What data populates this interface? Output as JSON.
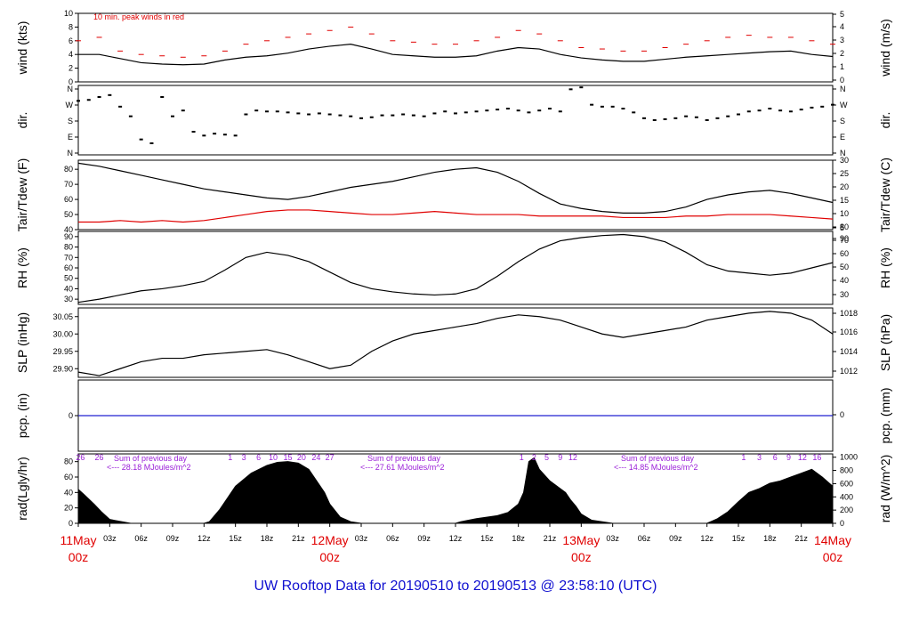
{
  "chart_data": {
    "type": "line",
    "title": "UW Rooftop Data for 20190510  to  20190513 @ 23:58:10  (UTC)",
    "x_time_labels": [
      "03z",
      "06z",
      "09z",
      "12z",
      "15z",
      "18z",
      "21z",
      "03z",
      "06z",
      "09z",
      "12z",
      "15z",
      "18z",
      "21z",
      "03z",
      "06z",
      "09z",
      "12z",
      "15z",
      "18z",
      "21z"
    ],
    "x_day_labels": [
      {
        "day": "11May",
        "hour": "00z"
      },
      {
        "day": "12May",
        "hour": "00z"
      },
      {
        "day": "13May",
        "hour": "00z"
      },
      {
        "day": "14May",
        "hour": "00z"
      }
    ],
    "panels": [
      {
        "id": "wind",
        "ylabel_left": "wind (kts)",
        "ylabel_right": "wind (m/s)",
        "left_ticks": [
          0,
          2,
          4,
          6,
          8,
          10
        ],
        "right_ticks": [
          0,
          1,
          2,
          3,
          4,
          5
        ],
        "ylim": [
          0,
          10
        ],
        "annotation": "10 min. peak winds in red",
        "series": [
          {
            "kind": "mean",
            "color": "#000000",
            "x": [
              0,
              2,
              4,
              6,
              8,
              10,
              12,
              14,
              16,
              18,
              20,
              22,
              24,
              26,
              28,
              30,
              32,
              34,
              36,
              38,
              40,
              42,
              44,
              46,
              48,
              50,
              52,
              54,
              56,
              58,
              60,
              62,
              64,
              66,
              68,
              70,
              72
            ],
            "values": [
              4,
              4,
              3.4,
              2.8,
              2.6,
              2.5,
              2.6,
              3.2,
              3.6,
              3.8,
              4.2,
              4.8,
              5.2,
              5.5,
              4.8,
              4,
              3.8,
              3.6,
              3.6,
              3.8,
              4.5,
              5,
              4.8,
              4,
              3.5,
              3.2,
              3,
              3,
              3.3,
              3.6,
              3.8,
              4,
              4.2,
              4.4,
              4.5,
              4,
              3.7
            ]
          },
          {
            "kind": "peak",
            "color": "#e00000",
            "x": [
              0,
              2,
              4,
              6,
              8,
              10,
              12,
              14,
              16,
              18,
              20,
              22,
              24,
              26,
              28,
              30,
              32,
              34,
              36,
              38,
              40,
              42,
              44,
              46,
              48,
              50,
              52,
              54,
              56,
              58,
              60,
              62,
              64,
              66,
              68,
              70,
              72
            ],
            "values": [
              6,
              6.5,
              4.5,
              4,
              3.8,
              3.6,
              3.8,
              4.5,
              5.5,
              6,
              6.5,
              7,
              7.5,
              8,
              7,
              6,
              5.8,
              5.5,
              5.5,
              6,
              6.5,
              7.5,
              7,
              6,
              5,
              4.8,
              4.5,
              4.5,
              5,
              5.5,
              6,
              6.5,
              6.8,
              6.5,
              6.5,
              6,
              5.5
            ]
          }
        ]
      },
      {
        "id": "dir",
        "ylabel_left": "dir.",
        "ylabel_right": "dir.",
        "left_ticks": [
          "N",
          "E",
          "S",
          "W",
          "N"
        ],
        "right_ticks": [
          "N",
          "E",
          "S",
          "W",
          "N"
        ],
        "ylim": [
          0,
          360
        ],
        "series": [
          {
            "kind": "scatter",
            "color": "#000000",
            "x": [
              0,
              1,
              2,
              3,
              4,
              5,
              6,
              7,
              8,
              9,
              10,
              11,
              12,
              13,
              14,
              15,
              16,
              17,
              18,
              19,
              20,
              21,
              22,
              23,
              24,
              25,
              26,
              27,
              28,
              29,
              30,
              31,
              32,
              33,
              34,
              35,
              36,
              37,
              38,
              39,
              40,
              41,
              42,
              43,
              44,
              45,
              46,
              47,
              48,
              49,
              50,
              51,
              52,
              53,
              54,
              55,
              56,
              57,
              58,
              59,
              60,
              61,
              62,
              63,
              64,
              65,
              66,
              67,
              68,
              69,
              70,
              71,
              72
            ],
            "values": [
              280,
              285,
              300,
              310,
              250,
              200,
              80,
              60,
              300,
              200,
              230,
              120,
              100,
              110,
              105,
              100,
              210,
              230,
              225,
              225,
              220,
              215,
              210,
              215,
              210,
              205,
              200,
              190,
              195,
              205,
              205,
              210,
              205,
              200,
              215,
              225,
              215,
              220,
              225,
              230,
              235,
              240,
              230,
              220,
              230,
              240,
              225,
              340,
              350,
              260,
              250,
              250,
              240,
              220,
              190,
              180,
              185,
              190,
              200,
              195,
              180,
              190,
              200,
              210,
              225,
              230,
              240,
              230,
              225,
              235,
              245,
              250,
              260
            ]
          }
        ]
      },
      {
        "id": "temp",
        "ylabel_left": "Tair/Tdew (F)",
        "ylabel_right": "Tair/Tdew (C)",
        "left_ticks": [
          40,
          50,
          60,
          70,
          80
        ],
        "right_ticks": [
          5,
          10,
          15,
          20,
          25,
          30
        ],
        "ylim": [
          40,
          86
        ],
        "series": [
          {
            "name": "Tair",
            "color": "#000000",
            "x": [
              0,
              2,
              4,
              6,
              8,
              10,
              12,
              14,
              16,
              18,
              20,
              22,
              24,
              26,
              28,
              30,
              32,
              34,
              36,
              38,
              40,
              42,
              44,
              46,
              48,
              50,
              52,
              54,
              56,
              58,
              60,
              62,
              64,
              66,
              68,
              70,
              72
            ],
            "values": [
              84,
              82,
              79,
              76,
              73,
              70,
              67,
              65,
              63,
              61,
              60,
              62,
              65,
              68,
              70,
              72,
              75,
              78,
              80,
              81,
              78,
              72,
              64,
              57,
              54,
              52,
              51,
              51,
              52,
              55,
              60,
              63,
              65,
              66,
              64,
              61,
              58
            ]
          },
          {
            "name": "Tdew",
            "color": "#e00000",
            "x": [
              0,
              2,
              4,
              6,
              8,
              10,
              12,
              14,
              16,
              18,
              20,
              22,
              24,
              26,
              28,
              30,
              32,
              34,
              36,
              38,
              40,
              42,
              44,
              46,
              48,
              50,
              52,
              54,
              56,
              58,
              60,
              62,
              64,
              66,
              68,
              70,
              72
            ],
            "values": [
              45,
              45,
              46,
              45,
              46,
              45,
              46,
              48,
              50,
              52,
              53,
              53,
              52,
              51,
              50,
              50,
              51,
              52,
              51,
              50,
              50,
              50,
              49,
              49,
              49,
              49,
              48,
              48,
              48,
              49,
              49,
              50,
              50,
              50,
              49,
              48,
              47
            ]
          }
        ]
      },
      {
        "id": "rh",
        "ylabel_left": "RH (%)",
        "ylabel_right": "RH (%)",
        "left_ticks": [
          30,
          40,
          50,
          60,
          70,
          80,
          90
        ],
        "right_ticks": [
          30,
          40,
          50,
          60,
          70,
          80,
          90
        ],
        "ylim": [
          25,
          95
        ],
        "series": [
          {
            "name": "RH",
            "color": "#000000",
            "x": [
              0,
              2,
              4,
              6,
              8,
              10,
              12,
              14,
              16,
              18,
              20,
              22,
              24,
              26,
              28,
              30,
              32,
              34,
              36,
              38,
              40,
              42,
              44,
              46,
              48,
              50,
              52,
              54,
              56,
              58,
              60,
              62,
              64,
              66,
              68,
              70,
              72
            ],
            "values": [
              27,
              30,
              34,
              38,
              40,
              43,
              47,
              58,
              70,
              75,
              72,
              66,
              56,
              46,
              40,
              37,
              35,
              34,
              35,
              40,
              52,
              66,
              78,
              86,
              89,
              91,
              92,
              90,
              85,
              75,
              63,
              57,
              55,
              53,
              55,
              60,
              65
            ]
          }
        ]
      },
      {
        "id": "slp",
        "ylabel_left": "SLP (inHg)",
        "ylabel_right": "SLP (hPa)",
        "left_ticks": [
          "29.90",
          "29.95",
          "30.00",
          "30.05"
        ],
        "right_ticks": [
          1012,
          1014,
          1016,
          1018
        ],
        "ylim": [
          29.875,
          30.075
        ],
        "series": [
          {
            "name": "SLP",
            "color": "#000000",
            "x": [
              0,
              2,
              4,
              6,
              8,
              10,
              12,
              14,
              16,
              18,
              20,
              22,
              24,
              26,
              28,
              30,
              32,
              34,
              36,
              38,
              40,
              42,
              44,
              46,
              48,
              50,
              52,
              54,
              56,
              58,
              60,
              62,
              64,
              66,
              68,
              70,
              72
            ],
            "values": [
              29.89,
              29.88,
              29.9,
              29.92,
              29.93,
              29.93,
              29.94,
              29.945,
              29.95,
              29.955,
              29.94,
              29.92,
              29.9,
              29.91,
              29.95,
              29.98,
              30,
              30.01,
              30.02,
              30.03,
              30.045,
              30.055,
              30.05,
              30.04,
              30.02,
              30,
              29.99,
              30,
              30.01,
              30.02,
              30.04,
              30.05,
              30.06,
              30.065,
              30.06,
              30.04,
              30
            ]
          }
        ]
      },
      {
        "id": "pcp",
        "ylabel_left": "pcp. (in)",
        "ylabel_right": "pcp. (mm)",
        "left_ticks": [
          0
        ],
        "right_ticks": [
          0
        ],
        "ylim": [
          -0.1,
          0.1
        ],
        "series": [
          {
            "name": "pcp",
            "color": "#2020d0",
            "x": [
              0,
              72
            ],
            "values": [
              0,
              0
            ]
          }
        ]
      },
      {
        "id": "rad",
        "ylabel_left": "rad(Lgly/hr)",
        "ylabel_right": "rad (W/m^2)",
        "left_ticks": [
          0,
          20,
          40,
          60,
          80
        ],
        "right_ticks": [
          0,
          200,
          400,
          600,
          800,
          1000
        ],
        "ylim": [
          0,
          90
        ],
        "daily_sums": [
          {
            "label": "Sum of previous day",
            "value": "<--- 28.18 MJoules/m^2"
          },
          {
            "label": "Sum of previous day",
            "value": "<--- 27.61 MJoules/m^2"
          },
          {
            "label": "Sum of previous day",
            "value": "<--- 14.85 MJoules/m^2"
          }
        ],
        "top_labels": [
          {
            "x": 0.2,
            "text": "26"
          },
          {
            "x": 2,
            "text": "26"
          },
          {
            "x": 14.5,
            "text": "1"
          },
          {
            "x": 15.8,
            "text": "3"
          },
          {
            "x": 17.2,
            "text": "6"
          },
          {
            "x": 18.6,
            "text": "10"
          },
          {
            "x": 20,
            "text": "15"
          },
          {
            "x": 21.3,
            "text": "20"
          },
          {
            "x": 22.7,
            "text": "24"
          },
          {
            "x": 24,
            "text": "27"
          },
          {
            "x": 42.3,
            "text": "1"
          },
          {
            "x": 43.5,
            "text": "2"
          },
          {
            "x": 44.7,
            "text": "5"
          },
          {
            "x": 46,
            "text": "9"
          },
          {
            "x": 47.2,
            "text": "12"
          },
          {
            "x": 63.5,
            "text": "1"
          },
          {
            "x": 65,
            "text": "3"
          },
          {
            "x": 66.5,
            "text": "6"
          },
          {
            "x": 67.8,
            "text": "9"
          },
          {
            "x": 69.1,
            "text": "12"
          },
          {
            "x": 70.5,
            "text": "16"
          }
        ],
        "series": [
          {
            "name": "rad",
            "kind": "area",
            "color": "#000000",
            "x": [
              0,
              0.5,
              1.5,
              2.2,
              3,
              5,
              10,
              12,
              12.5,
              13.5,
              15,
              16.5,
              18,
              19,
              20,
              21,
              22,
              22.5,
              23.5,
              24,
              25,
              26,
              27,
              36,
              36.5,
              38,
              40,
              41,
              42,
              42.5,
              43,
              43.5,
              44,
              45,
              46,
              46.5,
              47,
              47.5,
              48,
              49,
              50,
              51,
              60,
              60.5,
              61,
              62,
              63,
              64,
              65,
              66,
              67,
              68,
              69,
              70,
              71,
              72
            ],
            "values": [
              44,
              38,
              25,
              15,
              5,
              0,
              0,
              0,
              2,
              18,
              48,
              65,
              75,
              79,
              80,
              78,
              70,
              60,
              40,
              25,
              8,
              2,
              0,
              0,
              2,
              6,
              10,
              14,
              25,
              40,
              80,
              85,
              70,
              55,
              45,
              40,
              30,
              22,
              12,
              4,
              2,
              0,
              0,
              3,
              6,
              15,
              28,
              40,
              45,
              52,
              55,
              60,
              65,
              70,
              60,
              48
            ]
          }
        ]
      }
    ]
  }
}
